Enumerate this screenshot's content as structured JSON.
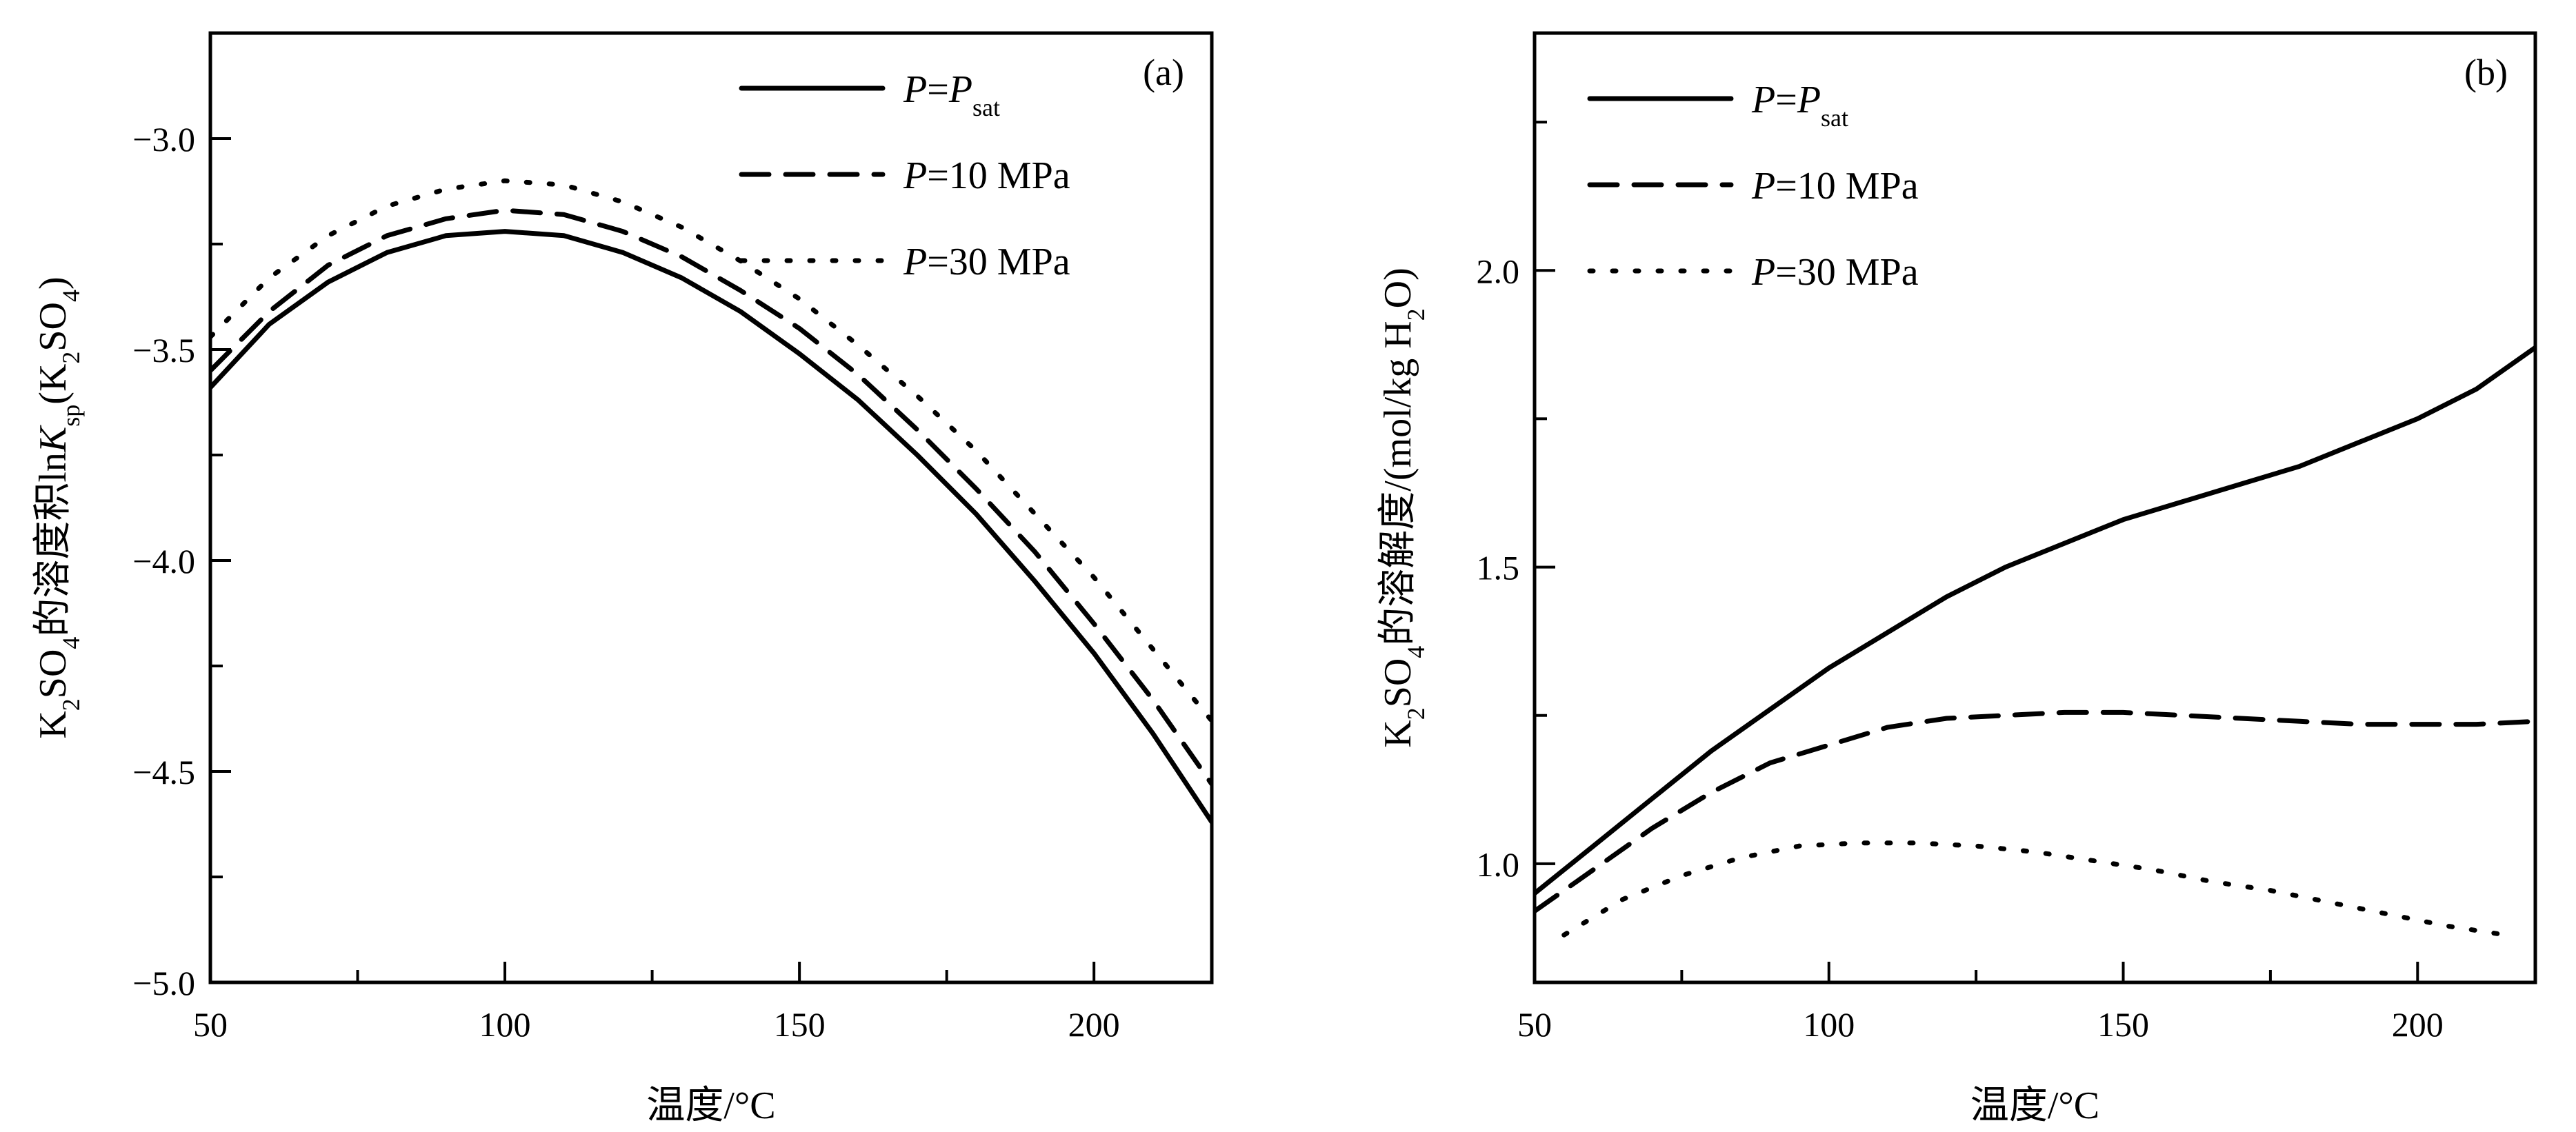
{
  "chart_data": [
    {
      "type": "line",
      "panel_tag": "(a)",
      "xlabel": "温度/°C",
      "ylabel_parts": [
        "K",
        "2",
        "SO",
        "4",
        "的溶度积",
        "ln",
        "K",
        "sp",
        "(K",
        "2",
        "SO",
        "4",
        ")"
      ],
      "xlim": [
        50,
        220
      ],
      "ylim": [
        -5.0,
        -2.75
      ],
      "xticks": [
        50,
        100,
        150,
        200
      ],
      "xtick_labels": [
        "50",
        "100",
        "150",
        "200"
      ],
      "yticks": [
        -5.0,
        -4.5,
        -4.0,
        -3.5,
        -3.0
      ],
      "ytick_labels": [
        "−5.0",
        "−4.5",
        "−4.0",
        "−3.5",
        "−3.0"
      ],
      "grid": false,
      "legend_position": "top-right",
      "series": [
        {
          "name_parts": [
            "P",
            "=",
            "P",
            "sat"
          ],
          "style": "solid",
          "x": [
            50,
            60,
            70,
            80,
            90,
            100,
            110,
            120,
            130,
            140,
            150,
            160,
            170,
            180,
            190,
            200,
            210,
            220
          ],
          "y": [
            -3.59,
            -3.44,
            -3.34,
            -3.27,
            -3.23,
            -3.22,
            -3.23,
            -3.27,
            -3.33,
            -3.41,
            -3.51,
            -3.62,
            -3.75,
            -3.89,
            -4.05,
            -4.22,
            -4.41,
            -4.62
          ]
        },
        {
          "name_parts": [
            "P",
            "=10 MPa"
          ],
          "style": "dashed",
          "x": [
            50,
            60,
            70,
            80,
            90,
            100,
            110,
            120,
            130,
            140,
            150,
            160,
            170,
            180,
            190,
            200,
            210,
            220
          ],
          "y": [
            -3.55,
            -3.41,
            -3.3,
            -3.23,
            -3.19,
            -3.17,
            -3.18,
            -3.22,
            -3.28,
            -3.36,
            -3.45,
            -3.56,
            -3.69,
            -3.83,
            -3.98,
            -4.15,
            -4.33,
            -4.53
          ]
        },
        {
          "name_parts": [
            "P",
            "=30 MPa"
          ],
          "style": "dotted",
          "x": [
            50,
            60,
            70,
            80,
            90,
            100,
            110,
            120,
            130,
            140,
            150,
            160,
            170,
            180,
            190,
            200,
            210,
            220
          ],
          "y": [
            -3.47,
            -3.33,
            -3.23,
            -3.16,
            -3.12,
            -3.1,
            -3.11,
            -3.15,
            -3.21,
            -3.29,
            -3.38,
            -3.49,
            -3.61,
            -3.74,
            -3.89,
            -4.04,
            -4.21,
            -4.38
          ]
        }
      ]
    },
    {
      "type": "line",
      "panel_tag": "(b)",
      "xlabel": "温度/°C",
      "ylabel_parts": [
        "K",
        "2",
        "SO",
        "4",
        "的溶解度/(mol/kg H",
        "2",
        "O)"
      ],
      "xlim": [
        50,
        220
      ],
      "ylim": [
        0.8,
        2.4
      ],
      "xticks": [
        50,
        100,
        150,
        200
      ],
      "xtick_labels": [
        "50",
        "100",
        "150",
        "200"
      ],
      "yticks": [
        1.0,
        1.5,
        2.0
      ],
      "ytick_labels": [
        "1.0",
        "1.5",
        "2.0"
      ],
      "grid": false,
      "legend_position": "top-left",
      "series": [
        {
          "name_parts": [
            "P",
            "=",
            "P",
            "sat"
          ],
          "style": "solid",
          "x": [
            50,
            60,
            70,
            80,
            90,
            100,
            110,
            120,
            130,
            140,
            150,
            160,
            170,
            180,
            190,
            200,
            210,
            220
          ],
          "y": [
            0.95,
            1.03,
            1.11,
            1.19,
            1.26,
            1.33,
            1.39,
            1.45,
            1.5,
            1.54,
            1.58,
            1.61,
            1.64,
            1.67,
            1.71,
            1.75,
            1.8,
            1.87
          ]
        },
        {
          "name_parts": [
            "P",
            "=10 MPa"
          ],
          "style": "dashed",
          "x": [
            50,
            60,
            70,
            80,
            90,
            100,
            110,
            120,
            130,
            140,
            150,
            160,
            170,
            180,
            190,
            200,
            210,
            220
          ],
          "y": [
            0.92,
            0.99,
            1.06,
            1.12,
            1.17,
            1.2,
            1.23,
            1.245,
            1.25,
            1.255,
            1.255,
            1.25,
            1.245,
            1.24,
            1.235,
            1.235,
            1.235,
            1.24
          ]
        },
        {
          "name_parts": [
            "P",
            "=30 MPa"
          ],
          "style": "dotted",
          "x": [
            55,
            65,
            75,
            85,
            95,
            105,
            115,
            125,
            135,
            145,
            155,
            165,
            175,
            185,
            195,
            205,
            215
          ],
          "y": [
            0.88,
            0.94,
            0.98,
            1.01,
            1.03,
            1.035,
            1.035,
            1.03,
            1.02,
            1.005,
            0.99,
            0.97,
            0.955,
            0.935,
            0.915,
            0.895,
            0.88
          ]
        }
      ]
    }
  ]
}
